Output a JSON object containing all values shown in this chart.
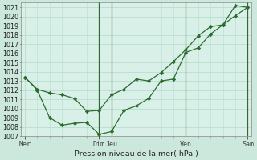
{
  "bg_color": "#cce8dc",
  "plot_bg_color": "#d8f0e8",
  "grid_color": "#b8ddd0",
  "line_color": "#2d6a2d",
  "marker_color": "#2d6a2d",
  "xlabel_text": "Pression niveau de la mer( hPa )",
  "ylim": [
    1007,
    1021.5
  ],
  "yticks": [
    1007,
    1008,
    1009,
    1010,
    1011,
    1012,
    1013,
    1014,
    1015,
    1016,
    1017,
    1018,
    1019,
    1020,
    1021
  ],
  "xtick_labels": [
    "Mer",
    "Dim",
    "Jeu",
    "Ven",
    "Sam"
  ],
  "xtick_positions": [
    0,
    6,
    7,
    13,
    18
  ],
  "vline_positions": [
    6,
    7,
    13,
    18
  ],
  "line1_x": [
    0,
    1,
    2,
    3,
    4,
    5,
    6,
    7,
    8,
    9,
    10,
    11,
    12,
    13,
    14,
    15,
    16,
    17,
    18
  ],
  "line1_y": [
    1013.4,
    1012.1,
    1011.7,
    1011.5,
    1011.1,
    1009.7,
    1009.8,
    1011.5,
    1012.1,
    1013.2,
    1013.0,
    1013.9,
    1015.1,
    1016.4,
    1017.9,
    1018.9,
    1019.1,
    1020.1,
    1021.0
  ],
  "line2_x": [
    0,
    1,
    2,
    3,
    4,
    5,
    6,
    7,
    8,
    9,
    10,
    11,
    12,
    13,
    14,
    15,
    16,
    17,
    18
  ],
  "line2_y": [
    1013.4,
    1012.0,
    1009.0,
    1008.2,
    1008.4,
    1008.5,
    1007.2,
    1007.5,
    1009.8,
    1010.3,
    1011.1,
    1013.0,
    1013.2,
    1016.1,
    1016.6,
    1018.1,
    1019.1,
    1021.2,
    1021.0
  ]
}
